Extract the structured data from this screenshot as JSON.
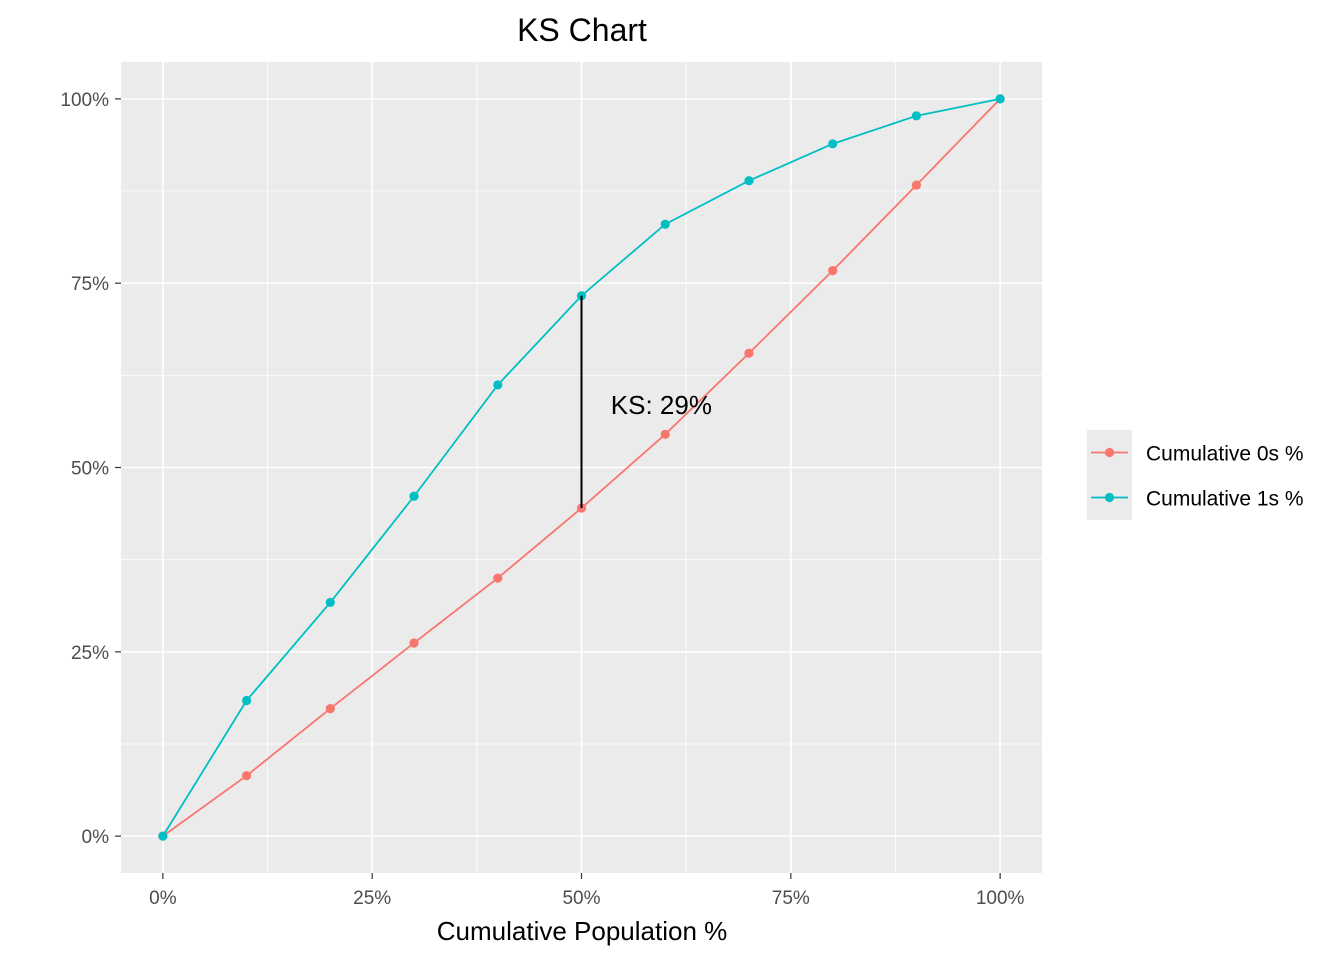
{
  "chart_data": {
    "type": "line",
    "title": "KS Chart",
    "xlabel": "Cumulative Population %",
    "ylabel": "",
    "xlim": [
      -0.05,
      1.05
    ],
    "ylim": [
      -0.05,
      1.05
    ],
    "x_ticks": [
      0,
      0.25,
      0.5,
      0.75,
      1.0
    ],
    "x_tick_labels": [
      "0%",
      "25%",
      "50%",
      "75%",
      "100%"
    ],
    "y_ticks": [
      0,
      0.25,
      0.5,
      0.75,
      1.0
    ],
    "y_tick_labels": [
      "0%",
      "25%",
      "50%",
      "75%",
      "100%"
    ],
    "grid": true,
    "legend_position": "right",
    "x": [
      0,
      0.1,
      0.2,
      0.3,
      0.4,
      0.5,
      0.6,
      0.7,
      0.8,
      0.9,
      1.0
    ],
    "series": [
      {
        "name": "Cumulative 0s %",
        "color": "#f8766d",
        "values": [
          0,
          0.082,
          0.173,
          0.262,
          0.35,
          0.445,
          0.545,
          0.655,
          0.767,
          0.883,
          1.0
        ]
      },
      {
        "name": "Cumulative 1s %",
        "color": "#00bfc4",
        "values": [
          0,
          0.184,
          0.317,
          0.461,
          0.612,
          0.733,
          0.83,
          0.889,
          0.939,
          0.977,
          1.0
        ]
      }
    ],
    "ks_line": {
      "x": 0.5,
      "y_from": 0.445,
      "y_to": 0.733,
      "color": "#000000"
    },
    "annotation": {
      "text": "KS: 29%",
      "x": 0.535,
      "y": 0.585
    }
  }
}
